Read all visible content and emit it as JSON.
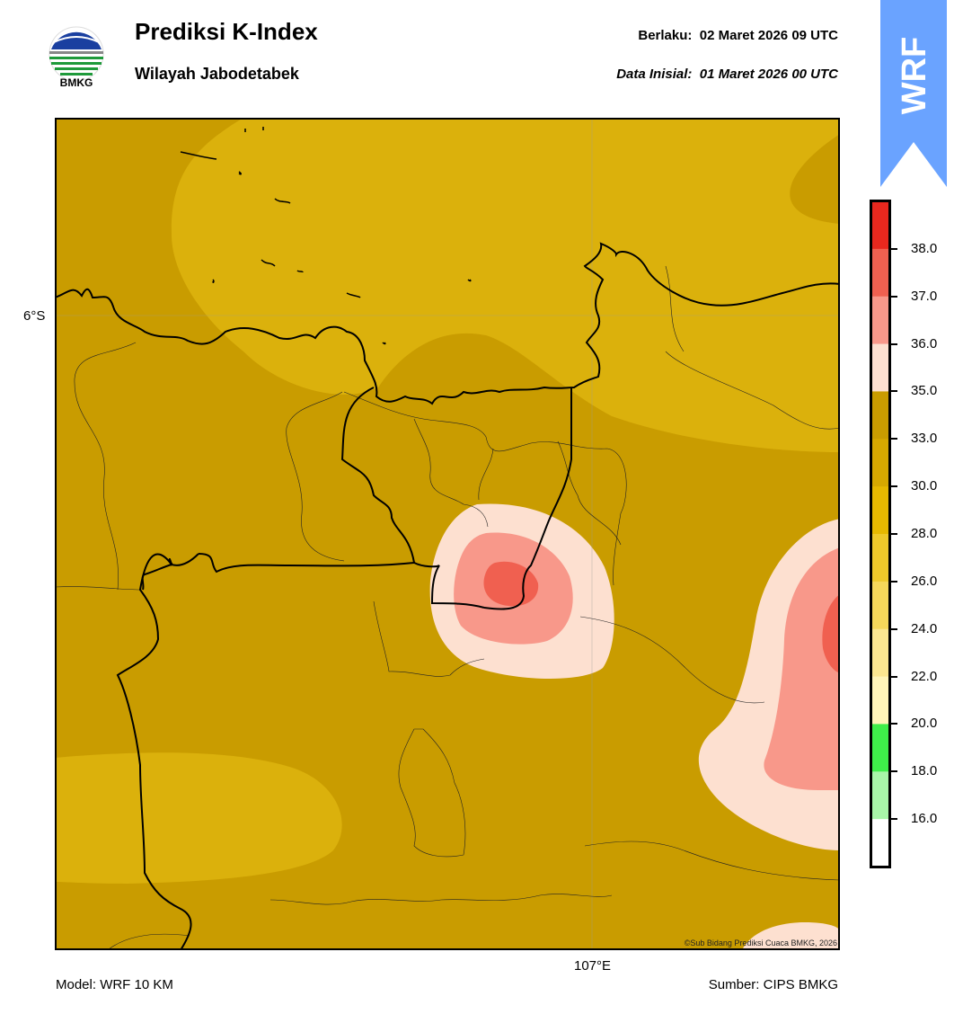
{
  "header": {
    "title": "Prediksi K-Index",
    "subtitle": "Wilayah Jabodetabek",
    "valid_label": "Berlaku:",
    "valid_value": "02 Maret 2026 09 UTC",
    "init_label": "Data Inisial:",
    "init_value": "01 Maret 2026 00 UTC"
  },
  "logo": {
    "text": "BMKG",
    "icon": "bmkg-logo-icon"
  },
  "badge": {
    "text": "WRF",
    "color": "#6aa3ff",
    "icon": "wrf-ribbon-icon"
  },
  "map": {
    "lat_label": "6°S",
    "lon_label": "107°E",
    "copyright": "©Sub Bidang Prediksi Cuaca BMKG, 2026"
  },
  "colorbar": {
    "ticks": [
      "38.0",
      "37.0",
      "36.0",
      "35.0",
      "33.0",
      "30.0",
      "28.0",
      "26.0",
      "24.0",
      "22.0",
      "20.0",
      "18.0",
      "16.0"
    ],
    "bins": [
      {
        "color": "#e8281e"
      },
      {
        "color": "#f06050"
      },
      {
        "color": "#f8988a"
      },
      {
        "color": "#fde0d0"
      },
      {
        "color": "#c99c00"
      },
      {
        "color": "#d6a800"
      },
      {
        "color": "#e6b800"
      },
      {
        "color": "#eec82a"
      },
      {
        "color": "#f5d75a"
      },
      {
        "color": "#fbe690"
      },
      {
        "color": "#fff4b8"
      },
      {
        "color": "#3fee4a"
      },
      {
        "color": "#a8f5a8"
      },
      {
        "color": "#ffffff"
      }
    ]
  },
  "footer": {
    "model": "Model: WRF 10 KM",
    "source": "Sumber: CIPS BMKG"
  }
}
